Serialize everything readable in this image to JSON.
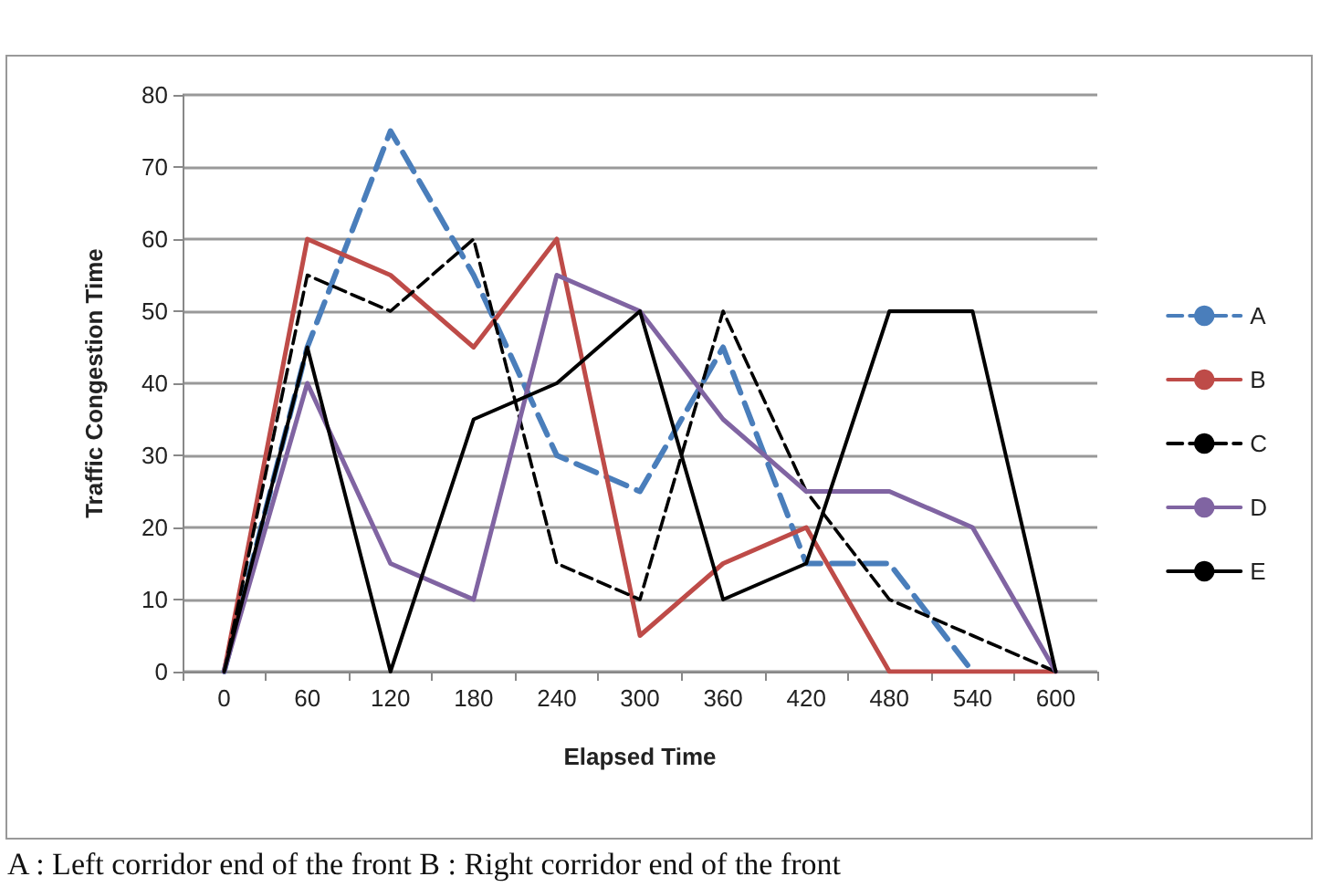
{
  "chart_data": {
    "type": "line",
    "xlabel": "Elapsed Time",
    "ylabel": "Traffic Congestion Time",
    "categories": [
      "0",
      "60",
      "120",
      "180",
      "240",
      "300",
      "360",
      "420",
      "480",
      "540",
      "600"
    ],
    "series": [
      {
        "name": "A",
        "color": "#4a7ebb",
        "line_style": "dashed",
        "values": [
          0,
          45,
          75,
          55,
          30,
          25,
          45,
          15,
          15,
          0,
          null
        ]
      },
      {
        "name": "B",
        "color": "#be4b48",
        "line_style": "solid",
        "values": [
          0,
          60,
          55,
          45,
          60,
          5,
          15,
          20,
          0,
          0,
          0
        ]
      },
      {
        "name": "C",
        "color": "#000000",
        "line_style": "dashed",
        "values": [
          0,
          55,
          50,
          60,
          15,
          10,
          50,
          25,
          10,
          5,
          0
        ]
      },
      {
        "name": "D",
        "color": "#8064a2",
        "line_style": "solid",
        "values": [
          0,
          40,
          15,
          10,
          55,
          50,
          35,
          25,
          25,
          20,
          0
        ]
      },
      {
        "name": "E",
        "color": "#000000",
        "line_style": "solid",
        "values": [
          0,
          45,
          0,
          35,
          40,
          50,
          10,
          15,
          50,
          50,
          0
        ]
      }
    ],
    "ylim": [
      0,
      80
    ],
    "yticks": [
      0,
      10,
      20,
      30,
      40,
      50,
      60,
      70,
      80
    ],
    "grid": "y",
    "legend": "right",
    "marker": "none",
    "annotations": [
      "A : Left corridor end of the front B : Right corridor end of the front"
    ]
  }
}
